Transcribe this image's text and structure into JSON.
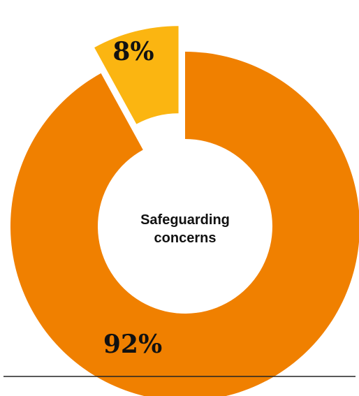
{
  "chart_data": {
    "type": "pie",
    "center_label": [
      "Safeguarding",
      "concerns"
    ],
    "slices": [
      {
        "label": "92%",
        "value": 92,
        "color": "#F08000"
      },
      {
        "label": "8%",
        "value": 8,
        "color": "#FBB511"
      }
    ]
  }
}
